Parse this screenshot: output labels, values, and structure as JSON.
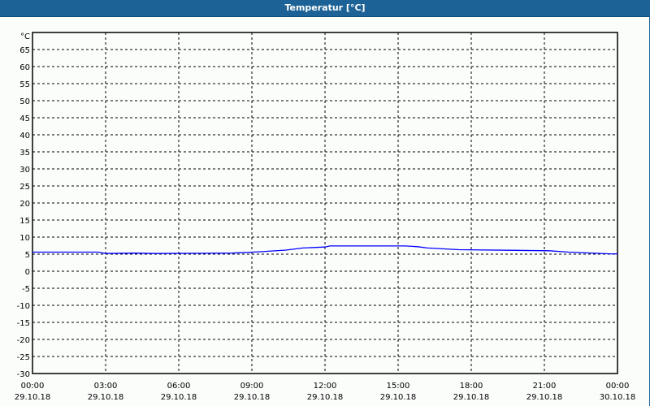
{
  "window": {
    "title": "Temperatur [°C]"
  },
  "chart_data": {
    "type": "line",
    "title": "Temperatur [°C]",
    "ylabel": "°C",
    "ylim": [
      -30,
      70
    ],
    "yticks": [
      -30,
      -25,
      -20,
      -15,
      -10,
      -5,
      0,
      5,
      10,
      15,
      20,
      25,
      30,
      35,
      40,
      45,
      50,
      55,
      60,
      65
    ],
    "xlim": [
      0,
      24
    ],
    "xtick_hours": [
      0,
      3,
      6,
      9,
      12,
      15,
      18,
      21,
      24
    ],
    "xticks": [
      {
        "time": "00:00",
        "date": "29.10.18"
      },
      {
        "time": "03:00",
        "date": "29.10.18"
      },
      {
        "time": "06:00",
        "date": "29.10.18"
      },
      {
        "time": "09:00",
        "date": "29.10.18"
      },
      {
        "time": "12:00",
        "date": "29.10.18"
      },
      {
        "time": "15:00",
        "date": "29.10.18"
      },
      {
        "time": "18:00",
        "date": "29.10.18"
      },
      {
        "time": "21:00",
        "date": "29.10.18"
      },
      {
        "time": "00:00",
        "date": "30.10.18"
      }
    ],
    "grid": true,
    "series": [
      {
        "color": "#0000ff",
        "x": [
          0,
          2.7,
          3,
          4.2,
          5,
          8.2,
          9.3,
          10.4,
          11.1,
          12,
          12.2,
          15.3,
          15.8,
          16.2,
          17.5,
          21.2,
          22,
          23.7,
          24
        ],
        "y": [
          5.6,
          5.6,
          5.2,
          5.3,
          5.2,
          5.3,
          5.7,
          6.2,
          6.8,
          7.1,
          7.4,
          7.4,
          7.2,
          6.8,
          6.3,
          6.0,
          5.6,
          5.1,
          5.1
        ]
      }
    ]
  }
}
